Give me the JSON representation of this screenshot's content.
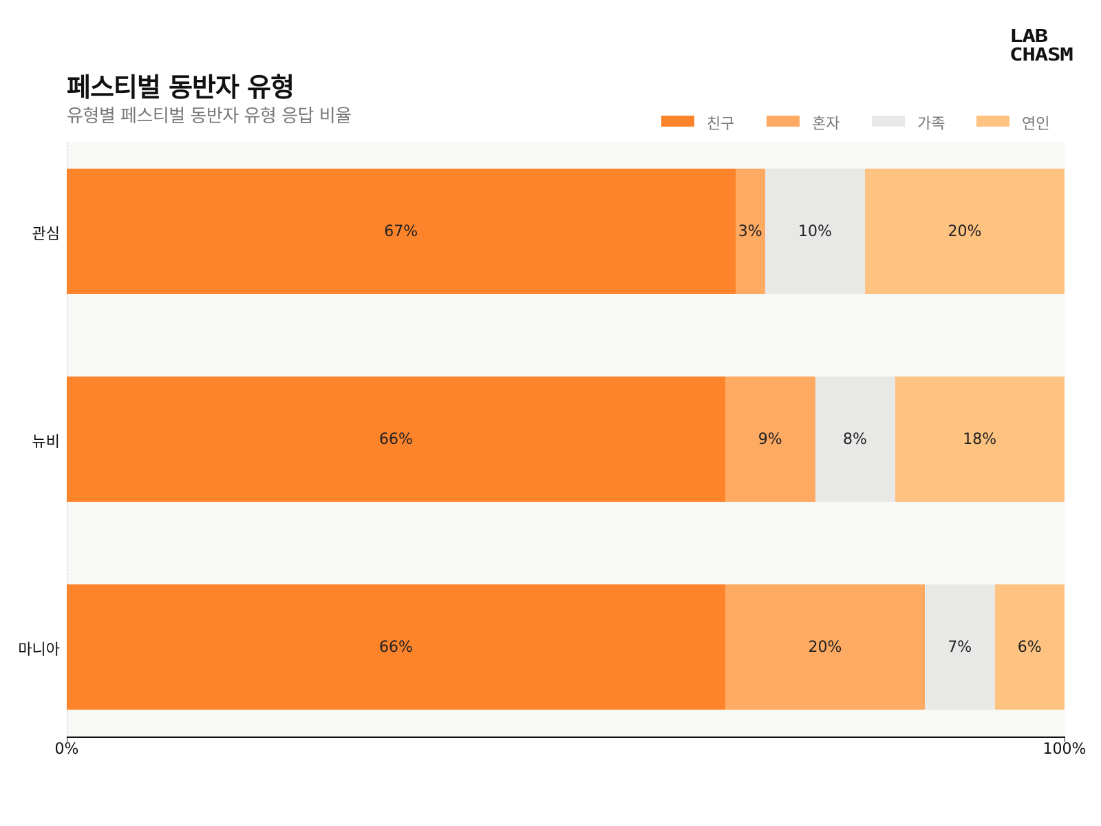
{
  "chart_data": {
    "type": "bar",
    "orientation": "horizontal",
    "stacked": true,
    "title": "페스티벌 동반자 유형",
    "subtitle": "유형별 페스티벌 동반자 유형 응답 비율",
    "categories": [
      "관심",
      "뉴비",
      "마니아"
    ],
    "series": [
      {
        "name": "친구",
        "color": "#fe842b",
        "values": [
          67,
          66,
          66
        ],
        "labels": [
          "67%",
          "66%",
          "66%"
        ]
      },
      {
        "name": "혼자",
        "color": "#feaa63",
        "values": [
          3,
          9,
          20
        ],
        "labels": [
          "3%",
          "9%",
          "20%"
        ]
      },
      {
        "name": "가족",
        "color": "#e8e8e7",
        "values": [
          10,
          8,
          7
        ],
        "labels": [
          "10%",
          "8%",
          "7%"
        ]
      },
      {
        "name": "연인",
        "color": "#fec281",
        "values": [
          20,
          18,
          6
        ],
        "labels": [
          "20%",
          "18%",
          "6%"
        ]
      }
    ],
    "xlim": [
      0,
      100
    ],
    "x_ticks": [
      "0%",
      "100%"
    ],
    "legend_position": "top-right",
    "grid": false
  },
  "logo": {
    "line1": "LAB",
    "line2": "CHASM"
  }
}
